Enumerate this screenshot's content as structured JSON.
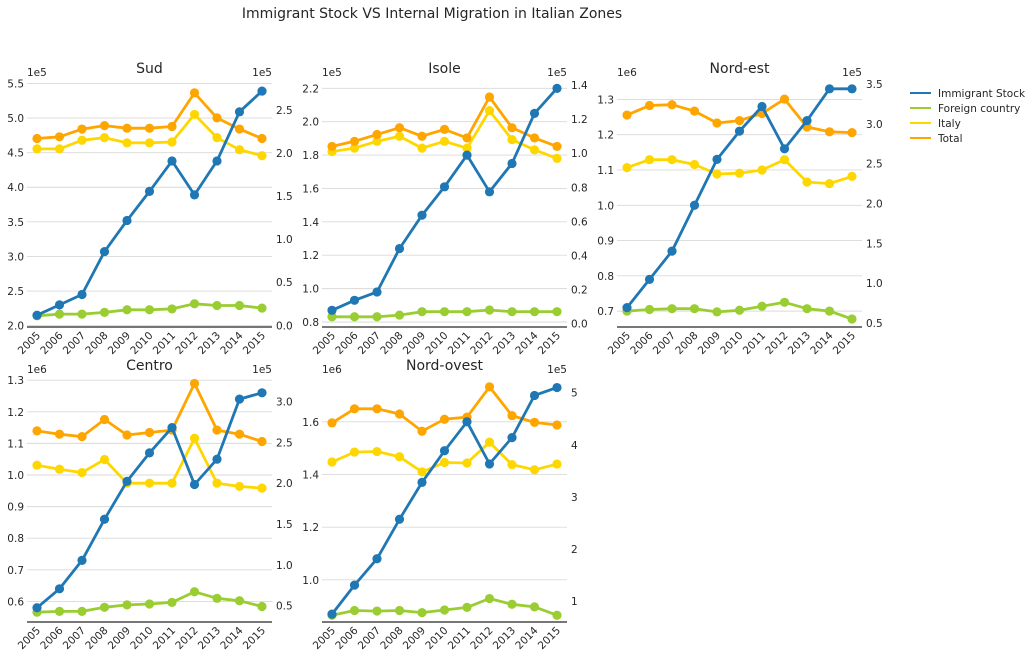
{
  "title": "Immigrant Stock VS Internal Migration in Italian Zones",
  "colors": {
    "immigrant": "#1f77b4",
    "foreign": "#9acd32",
    "italy": "#ffd700",
    "total": "#ffa500",
    "grid": "#d9d9d9",
    "axis": "#262626"
  },
  "legend": {
    "placement": "right",
    "entries": [
      "Immigrant Stock",
      "Foreign country",
      "Italy",
      "Total"
    ]
  },
  "chart_data": [
    {
      "type": "line",
      "title": "Sud",
      "x": [
        2005,
        2006,
        2007,
        2008,
        2009,
        2010,
        2011,
        2012,
        2013,
        2014,
        2015
      ],
      "left_axis": {
        "multiplier": "1e5",
        "ylim": [
          1.98,
          5.55
        ],
        "ticks": [
          "2.0",
          "2.5",
          "3.0",
          "3.5",
          "4.0",
          "4.5",
          "5.0",
          "5.5"
        ]
      },
      "right_axis": {
        "multiplier": "1e5",
        "ylim": [
          -0.02,
          2.85
        ],
        "ticks": [
          "0.0",
          "0.5",
          "1.0",
          "1.5",
          "2.0",
          "2.5"
        ]
      },
      "grid": true,
      "series": [
        {
          "name": "Immigrant Stock",
          "axis": "left",
          "values": [
            2.15,
            2.3,
            2.45,
            3.07,
            3.52,
            3.94,
            4.38,
            3.89,
            4.38,
            5.09,
            5.39
          ]
        },
        {
          "name": "Foreign country",
          "axis": "right",
          "values": [
            0.11,
            0.13,
            0.13,
            0.15,
            0.18,
            0.18,
            0.19,
            0.25,
            0.23,
            0.23,
            0.2
          ]
        },
        {
          "name": "Italy",
          "axis": "right",
          "values": [
            2.05,
            2.05,
            2.15,
            2.18,
            2.12,
            2.12,
            2.13,
            2.45,
            2.18,
            2.04,
            1.97
          ]
        },
        {
          "name": "Total",
          "axis": "right",
          "values": [
            2.17,
            2.19,
            2.28,
            2.32,
            2.29,
            2.29,
            2.31,
            2.7,
            2.41,
            2.28,
            2.17
          ]
        }
      ]
    },
    {
      "type": "line",
      "title": "Isole",
      "x": [
        2005,
        2006,
        2007,
        2008,
        2009,
        2010,
        2011,
        2012,
        2013,
        2014,
        2015
      ],
      "left_axis": {
        "multiplier": "1e5",
        "ylim": [
          0.77,
          2.25
        ],
        "ticks": [
          "0.8",
          "1.0",
          "1.2",
          "1.4",
          "1.6",
          "1.8",
          "2.0",
          "2.2"
        ]
      },
      "right_axis": {
        "multiplier": "1e5",
        "ylim": [
          -0.02,
          1.43
        ],
        "ticks": [
          "0.0",
          "0.2",
          "0.4",
          "0.6",
          "0.8",
          "1.0",
          "1.2",
          "1.4"
        ]
      },
      "grid": true,
      "series": [
        {
          "name": "Immigrant Stock",
          "axis": "left",
          "values": [
            0.87,
            0.93,
            0.98,
            1.24,
            1.44,
            1.61,
            1.8,
            1.58,
            1.75,
            2.05,
            2.2
          ]
        },
        {
          "name": "Foreign country",
          "axis": "right",
          "values": [
            0.04,
            0.04,
            0.04,
            0.05,
            0.07,
            0.07,
            0.07,
            0.08,
            0.07,
            0.07,
            0.07
          ]
        },
        {
          "name": "Italy",
          "axis": "right",
          "values": [
            1.01,
            1.03,
            1.07,
            1.1,
            1.03,
            1.07,
            1.03,
            1.25,
            1.08,
            1.02,
            0.97
          ]
        },
        {
          "name": "Total",
          "axis": "right",
          "values": [
            1.04,
            1.07,
            1.11,
            1.15,
            1.1,
            1.14,
            1.09,
            1.33,
            1.15,
            1.09,
            1.04
          ]
        }
      ]
    },
    {
      "type": "line",
      "title": "Nord-est",
      "x": [
        2005,
        2006,
        2007,
        2008,
        2009,
        2010,
        2011,
        2012,
        2013,
        2014,
        2015
      ],
      "left_axis": {
        "multiplier": "1e6",
        "ylim": [
          0.655,
          1.355
        ],
        "ticks": [
          "0.7",
          "0.8",
          "0.9",
          "1.0",
          "1.1",
          "1.2",
          "1.3"
        ]
      },
      "right_axis": {
        "multiplier": "1e5",
        "ylim": [
          0.45,
          3.55
        ],
        "ticks": [
          "0.5",
          "1.0",
          "1.5",
          "2.0",
          "2.5",
          "3.0",
          "3.5"
        ]
      },
      "grid": true,
      "series": [
        {
          "name": "Immigrant Stock",
          "axis": "left",
          "values": [
            0.71,
            0.79,
            0.87,
            1.0,
            1.13,
            1.21,
            1.28,
            1.16,
            1.24,
            1.33,
            1.33
          ]
        },
        {
          "name": "Foreign country",
          "axis": "right",
          "values": [
            0.65,
            0.67,
            0.68,
            0.68,
            0.64,
            0.66,
            0.71,
            0.76,
            0.68,
            0.65,
            0.55
          ]
        },
        {
          "name": "Italy",
          "axis": "right",
          "values": [
            2.45,
            2.55,
            2.55,
            2.49,
            2.37,
            2.38,
            2.42,
            2.55,
            2.27,
            2.25,
            2.34
          ]
        },
        {
          "name": "Total",
          "axis": "right",
          "values": [
            3.11,
            3.23,
            3.24,
            3.16,
            3.01,
            3.04,
            3.13,
            3.31,
            2.96,
            2.9,
            2.89
          ]
        }
      ]
    },
    {
      "type": "line",
      "title": "Centro",
      "x": [
        2005,
        2006,
        2007,
        2008,
        2009,
        2010,
        2011,
        2012,
        2013,
        2014,
        2015
      ],
      "left_axis": {
        "multiplier": "1e6",
        "ylim": [
          0.535,
          1.31
        ],
        "ticks": [
          "0.6",
          "0.7",
          "0.8",
          "0.9",
          "1.0",
          "1.1",
          "1.2",
          "1.3"
        ]
      },
      "right_axis": {
        "multiplier": "1e5",
        "ylim": [
          0.3,
          3.3
        ],
        "ticks": [
          "0.5",
          "1.0",
          "1.5",
          "2.0",
          "2.5",
          "3.0"
        ]
      },
      "grid": true,
      "series": [
        {
          "name": "Immigrant Stock",
          "axis": "left",
          "values": [
            0.58,
            0.64,
            0.73,
            0.86,
            0.98,
            1.07,
            1.15,
            0.97,
            1.05,
            1.24,
            1.26
          ]
        },
        {
          "name": "Foreign country",
          "axis": "right",
          "values": [
            0.42,
            0.43,
            0.43,
            0.48,
            0.51,
            0.52,
            0.54,
            0.67,
            0.59,
            0.56,
            0.49
          ]
        },
        {
          "name": "Italy",
          "axis": "right",
          "values": [
            2.22,
            2.17,
            2.13,
            2.29,
            2.0,
            2.0,
            2.0,
            2.55,
            2.0,
            1.96,
            1.94
          ]
        },
        {
          "name": "Total",
          "axis": "right",
          "values": [
            2.64,
            2.6,
            2.57,
            2.78,
            2.59,
            2.62,
            2.65,
            3.22,
            2.65,
            2.6,
            2.51
          ]
        }
      ]
    },
    {
      "type": "line",
      "title": "Nord-ovest",
      "x": [
        2005,
        2006,
        2007,
        2008,
        2009,
        2010,
        2011,
        2012,
        2013,
        2014,
        2015
      ],
      "left_axis": {
        "multiplier": "1e6",
        "ylim": [
          0.84,
          1.77
        ],
        "ticks": [
          "1.0",
          "1.2",
          "1.4",
          "1.6"
        ]
      },
      "right_axis": {
        "multiplier": "1e5",
        "ylim": [
          0.6,
          5.3
        ],
        "ticks": [
          "1",
          "2",
          "3",
          "4",
          "5"
        ]
      },
      "grid": true,
      "series": [
        {
          "name": "Immigrant Stock",
          "axis": "left",
          "values": [
            0.87,
            0.98,
            1.08,
            1.23,
            1.37,
            1.49,
            1.6,
            1.44,
            1.54,
            1.7,
            1.73
          ]
        },
        {
          "name": "Foreign country",
          "axis": "right",
          "values": [
            0.73,
            0.82,
            0.81,
            0.82,
            0.78,
            0.83,
            0.88,
            1.05,
            0.94,
            0.89,
            0.73
          ]
        },
        {
          "name": "Italy",
          "axis": "right",
          "values": [
            3.67,
            3.86,
            3.87,
            3.77,
            3.48,
            3.66,
            3.65,
            4.05,
            3.62,
            3.52,
            3.63
          ]
        },
        {
          "name": "Total",
          "axis": "right",
          "values": [
            4.42,
            4.69,
            4.69,
            4.59,
            4.26,
            4.49,
            4.53,
            5.11,
            4.56,
            4.43,
            4.38
          ]
        }
      ]
    }
  ]
}
